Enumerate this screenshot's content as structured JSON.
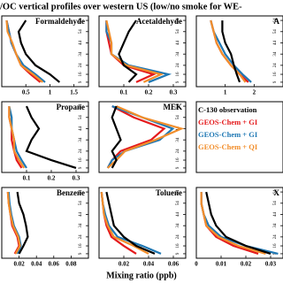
{
  "title": "/OC vertical profiles over western US (low/no smoke for WE-",
  "xlabel": "Mixing ratio (ppb)",
  "legend": [
    {
      "name": "C-130 observation",
      "color": "#000000"
    },
    {
      "name": "GEOS-Chem + GI",
      "color": "#e41a1c"
    },
    {
      "name": "GEOS-Chem + GI",
      "color": "#1f78b4"
    },
    {
      "name": "GEOS-Chem + QI",
      "color": "#f28e2b"
    }
  ],
  "chart_data": [
    {
      "type": "line",
      "title": "Formaldehyde",
      "xlim": [
        0,
        1.8
      ],
      "xticks": [
        0.5,
        1,
        1.5
      ],
      "ylim": [
        5,
        68
      ],
      "yticks": [
        9,
        16,
        24,
        34,
        44,
        54,
        64
      ],
      "y": [
        9,
        16,
        24,
        34,
        44,
        54,
        64
      ],
      "series": [
        {
          "color": "#000000",
          "values": [
            1.2,
            1.0,
            0.7,
            0.5,
            0.4,
            0.35,
            0.5
          ]
        },
        {
          "color": "#e41a1c",
          "values": [
            0.8,
            0.6,
            0.4,
            0.3,
            0.2,
            0.15,
            0.1
          ]
        },
        {
          "color": "#1f78b4",
          "values": [
            0.9,
            0.7,
            0.45,
            0.3,
            0.2,
            0.15,
            0.1
          ]
        },
        {
          "color": "#f28e2b",
          "values": [
            0.85,
            0.65,
            0.4,
            0.3,
            0.22,
            0.12,
            0.1
          ]
        }
      ]
    },
    {
      "type": "line",
      "title": "Acetaldehyde",
      "xlim": [
        0,
        0.35
      ],
      "xticks": [
        0.1,
        0.2,
        0.3
      ],
      "ylim": [
        5,
        68
      ],
      "yticks": [
        9,
        16,
        24,
        34,
        44,
        54,
        64
      ],
      "y": [
        9,
        16,
        24,
        34,
        44,
        54,
        64
      ],
      "series": [
        {
          "color": "#000000",
          "values": [
            0.12,
            0.15,
            0.1,
            0.08,
            0.1,
            0.12,
            0.15
          ]
        },
        {
          "color": "#e41a1c",
          "values": [
            0.15,
            0.22,
            0.1,
            0.05,
            0.04,
            0.03,
            0.03
          ]
        },
        {
          "color": "#1f78b4",
          "values": [
            0.2,
            0.28,
            0.12,
            0.05,
            0.05,
            0.03,
            0.03
          ]
        },
        {
          "color": "#f28e2b",
          "values": [
            0.18,
            0.25,
            0.11,
            0.05,
            0.05,
            0.04,
            0.03
          ]
        }
      ]
    },
    {
      "type": "line",
      "title": "A",
      "xlim": [
        0,
        3
      ],
      "xticks": [
        1,
        2
      ],
      "ylim": [
        5,
        68
      ],
      "yticks": [
        9,
        16,
        24,
        34,
        44,
        54,
        64
      ],
      "y": [
        9,
        16,
        24,
        34,
        44,
        54,
        64
      ],
      "series": [
        {
          "color": "#000000",
          "values": [
            1.5,
            1.4,
            1.3,
            1.2,
            1.0,
            0.9,
            0.9
          ]
        },
        {
          "color": "#e41a1c",
          "values": [
            1.8,
            1.5,
            1.2,
            0.9,
            0.7,
            0.6,
            0.5
          ]
        },
        {
          "color": "#1f78b4",
          "values": [
            1.9,
            1.6,
            1.3,
            1.0,
            0.8,
            0.6,
            0.5
          ]
        },
        {
          "color": "#f28e2b",
          "values": [
            1.7,
            1.5,
            1.2,
            0.9,
            0.7,
            0.6,
            0.5
          ]
        }
      ]
    },
    {
      "type": "line",
      "title": "Propane",
      "xlim": [
        0,
        0.35
      ],
      "xticks": [
        0.1,
        0.2,
        0.3
      ],
      "ylim": [
        5,
        68
      ],
      "yticks": [
        9,
        16,
        24,
        34,
        44,
        54,
        64
      ],
      "y": [
        9,
        16,
        24,
        34,
        44,
        54,
        64
      ],
      "series": [
        {
          "color": "#000000",
          "values": [
            0.3,
            0.2,
            0.1,
            0.12,
            0.15,
            0.12,
            0.1
          ]
        },
        {
          "color": "#e41a1c",
          "values": [
            0.08,
            0.06,
            0.05,
            0.04,
            0.04,
            0.03,
            0.03
          ]
        },
        {
          "color": "#1f78b4",
          "values": [
            0.1,
            0.08,
            0.06,
            0.05,
            0.04,
            0.04,
            0.03
          ]
        },
        {
          "color": "#f28e2b",
          "values": [
            0.09,
            0.07,
            0.05,
            0.05,
            0.04,
            0.03,
            0.03
          ]
        }
      ]
    },
    {
      "type": "line",
      "title": "MEK",
      "xlim": [
        0,
        0.2
      ],
      "ylim": [
        5,
        68
      ],
      "yticks": [
        9,
        16,
        24,
        34,
        44,
        54,
        64
      ],
      "y": [
        9,
        16,
        24,
        34,
        44,
        54,
        64
      ],
      "series": [
        {
          "color": "#000000",
          "values": [
            0.03,
            0.04,
            0.03,
            0.05,
            0.04,
            0.03,
            0.04
          ]
        },
        {
          "color": "#e41a1c",
          "values": [
            0.02,
            0.03,
            0.05,
            0.12,
            0.15,
            0.08,
            0.03
          ]
        },
        {
          "color": "#1f78b4",
          "values": [
            0.02,
            0.03,
            0.06,
            0.14,
            0.17,
            0.1,
            0.03
          ]
        },
        {
          "color": "#f28e2b",
          "values": [
            0.02,
            0.04,
            0.06,
            0.13,
            0.19,
            0.1,
            0.04
          ]
        }
      ]
    },
    {
      "type": "legend"
    },
    {
      "type": "line",
      "title": "Benzene",
      "xlim": [
        0,
        0.1
      ],
      "xticks": [
        0.02,
        0.04,
        0.06,
        0.08
      ],
      "ylim": [
        5,
        68
      ],
      "yticks": [
        9,
        16,
        24,
        34,
        44,
        54,
        64
      ],
      "y": [
        9,
        16,
        24,
        34,
        44,
        54,
        64
      ],
      "series": [
        {
          "color": "#000000",
          "values": [
            0.02,
            0.025,
            0.03,
            0.028,
            0.025,
            0.02,
            0.018
          ]
        },
        {
          "color": "#e41a1c",
          "values": [
            0.015,
            0.02,
            0.018,
            0.012,
            0.01,
            0.008,
            0.007
          ]
        },
        {
          "color": "#1f78b4",
          "values": [
            0.018,
            0.022,
            0.02,
            0.014,
            0.011,
            0.009,
            0.008
          ]
        },
        {
          "color": "#f28e2b",
          "values": [
            0.016,
            0.021,
            0.019,
            0.013,
            0.01,
            0.008,
            0.007
          ]
        }
      ]
    },
    {
      "type": "line",
      "title": "Toluene",
      "xlim": [
        0,
        0.07
      ],
      "xticks": [
        0.02,
        0.04,
        0.06
      ],
      "ylim": [
        5,
        68
      ],
      "yticks": [
        9,
        16,
        24,
        34,
        44,
        54,
        64
      ],
      "y": [
        9,
        16,
        24,
        34,
        44,
        54,
        64
      ],
      "series": [
        {
          "color": "#000000",
          "values": [
            0.045,
            0.03,
            0.02,
            0.012,
            0.01,
            0.008,
            0.006
          ]
        },
        {
          "color": "#e41a1c",
          "values": [
            0.03,
            0.02,
            0.01,
            0.006,
            0.004,
            0.003,
            0.002
          ]
        },
        {
          "color": "#1f78b4",
          "values": [
            0.05,
            0.035,
            0.015,
            0.008,
            0.005,
            0.003,
            0.002
          ]
        },
        {
          "color": "#f28e2b",
          "values": [
            0.04,
            0.028,
            0.012,
            0.007,
            0.004,
            0.003,
            0.002
          ]
        }
      ]
    },
    {
      "type": "line",
      "title": "X",
      "xlim": [
        0,
        0.035
      ],
      "xticks": [
        0,
        0.01,
        0.02,
        0.03
      ],
      "ylim": [
        5,
        68
      ],
      "yticks": [
        9,
        16,
        24,
        34,
        44,
        54,
        64
      ],
      "y": [
        9,
        16,
        24,
        34,
        44,
        54,
        64
      ],
      "series": [
        {
          "color": "#000000",
          "values": [
            0.03,
            0.02,
            0.012,
            0.008,
            0.006,
            0.005,
            0.004
          ]
        },
        {
          "color": "#e41a1c",
          "values": [
            0.025,
            0.015,
            0.008,
            0.004,
            0.003,
            0.002,
            0.002
          ]
        },
        {
          "color": "#1f78b4",
          "values": [
            0.033,
            0.02,
            0.01,
            0.005,
            0.003,
            0.002,
            0.002
          ]
        },
        {
          "color": "#f28e2b",
          "values": [
            0.028,
            0.017,
            0.009,
            0.004,
            0.003,
            0.002,
            0.002
          ]
        }
      ]
    }
  ]
}
